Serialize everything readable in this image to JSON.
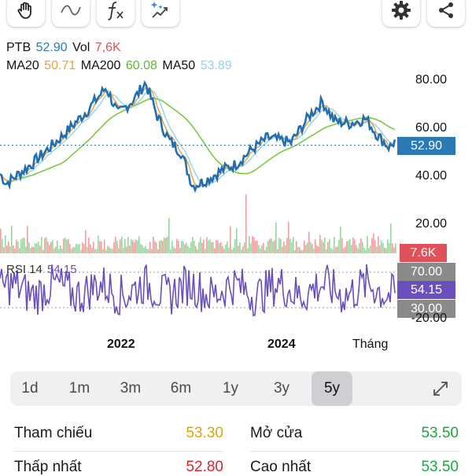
{
  "toolbar": {
    "left_tools": [
      "hand-icon",
      "line-draw-icon",
      "function-icon",
      "magic-indicator-icon"
    ],
    "right_tools": [
      "gear-icon",
      "share-icon"
    ]
  },
  "legend": {
    "symbol": "PTB",
    "price": "52.90",
    "vol_label": "Vol",
    "vol_value": "7,6K",
    "ma20_label": "MA20",
    "ma20_value": "50.71",
    "ma200_label": "MA200",
    "ma200_value": "60.08",
    "ma50_label": "MA50",
    "ma50_value": "53.89"
  },
  "rsi": {
    "label": "RSI 14",
    "value": "54.15"
  },
  "axis": {
    "price_ticks": [
      "80.00",
      "60.00",
      "40.00",
      "20.00"
    ],
    "current_price": "52.90",
    "volume_tag": "7.6K",
    "rsi_upper": "70.00",
    "rsi_current": "54.15",
    "rsi_lower": "30.00",
    "rsi_bottom_tick": "-20.00",
    "x_labels": [
      "2022",
      "2024"
    ],
    "x_unit": "Tháng"
  },
  "colors": {
    "price_line": "#1f6fb2",
    "ma20": "#e6a23c",
    "ma50": "#8fd3f0",
    "ma200": "#7cc93f",
    "rsi_line": "#6b4fbb",
    "price_tag": "#2a7ab8",
    "vol_tag": "#e0525a",
    "rsi_tag_gray": "#8a8a8a",
    "rsi_tag_purple": "#6b4fbb",
    "orange": "#e0a500",
    "green": "#1fa83b",
    "red": "#d9262b"
  },
  "periods": [
    "1d",
    "1m",
    "3m",
    "6m",
    "1y",
    "3y",
    "5y"
  ],
  "active_period": "5y",
  "expand_icon": "expand-icon",
  "stats": {
    "ref_label": "Tham chiếu",
    "ref_value": "53.30",
    "open_label": "Mở cửa",
    "open_value": "53.50",
    "low_label": "Thấp nhất",
    "low_value": "52.80",
    "high_label": "Cao nhất",
    "high_value": "53.50"
  }
}
